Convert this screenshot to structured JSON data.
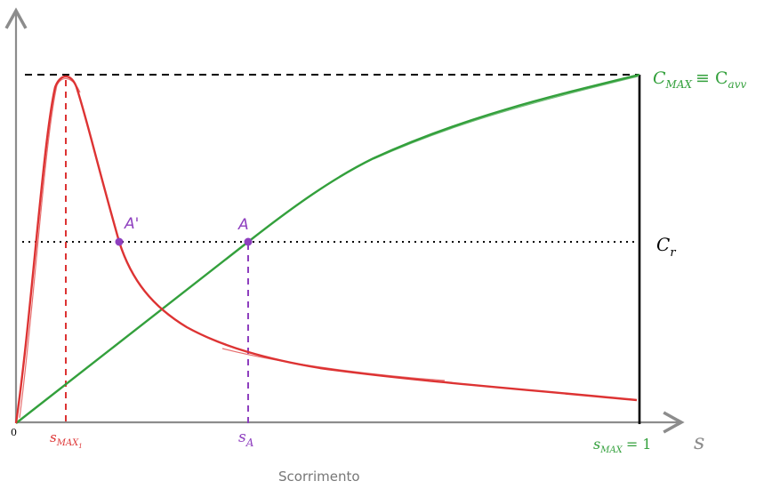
{
  "axes": {
    "origin_label": "0",
    "x_axis_symbol": "s",
    "x_axis_caption": "Scorrimento"
  },
  "labels": {
    "cmax_main": "C",
    "cmax_sub": "MAX",
    "cmax_equiv": "≡ C",
    "cavv_sub": "avv",
    "cr_main": "C",
    "cr_sub": "r",
    "smax1_main": "s",
    "smax1_sub": "MAX",
    "smax1_subsub": "1",
    "sa_main": "s",
    "sa_sub": "A",
    "smax_main": "s",
    "smax_sub": "MAX",
    "smax_eq": "= 1",
    "point_a": "A",
    "point_a_prime": "A'"
  },
  "colors": {
    "axis": "#8c8c8c",
    "torque_curve": "#dd3333",
    "load_curve": "#33a03c",
    "point": "#8e3fbf",
    "guide": "#000000"
  }
}
